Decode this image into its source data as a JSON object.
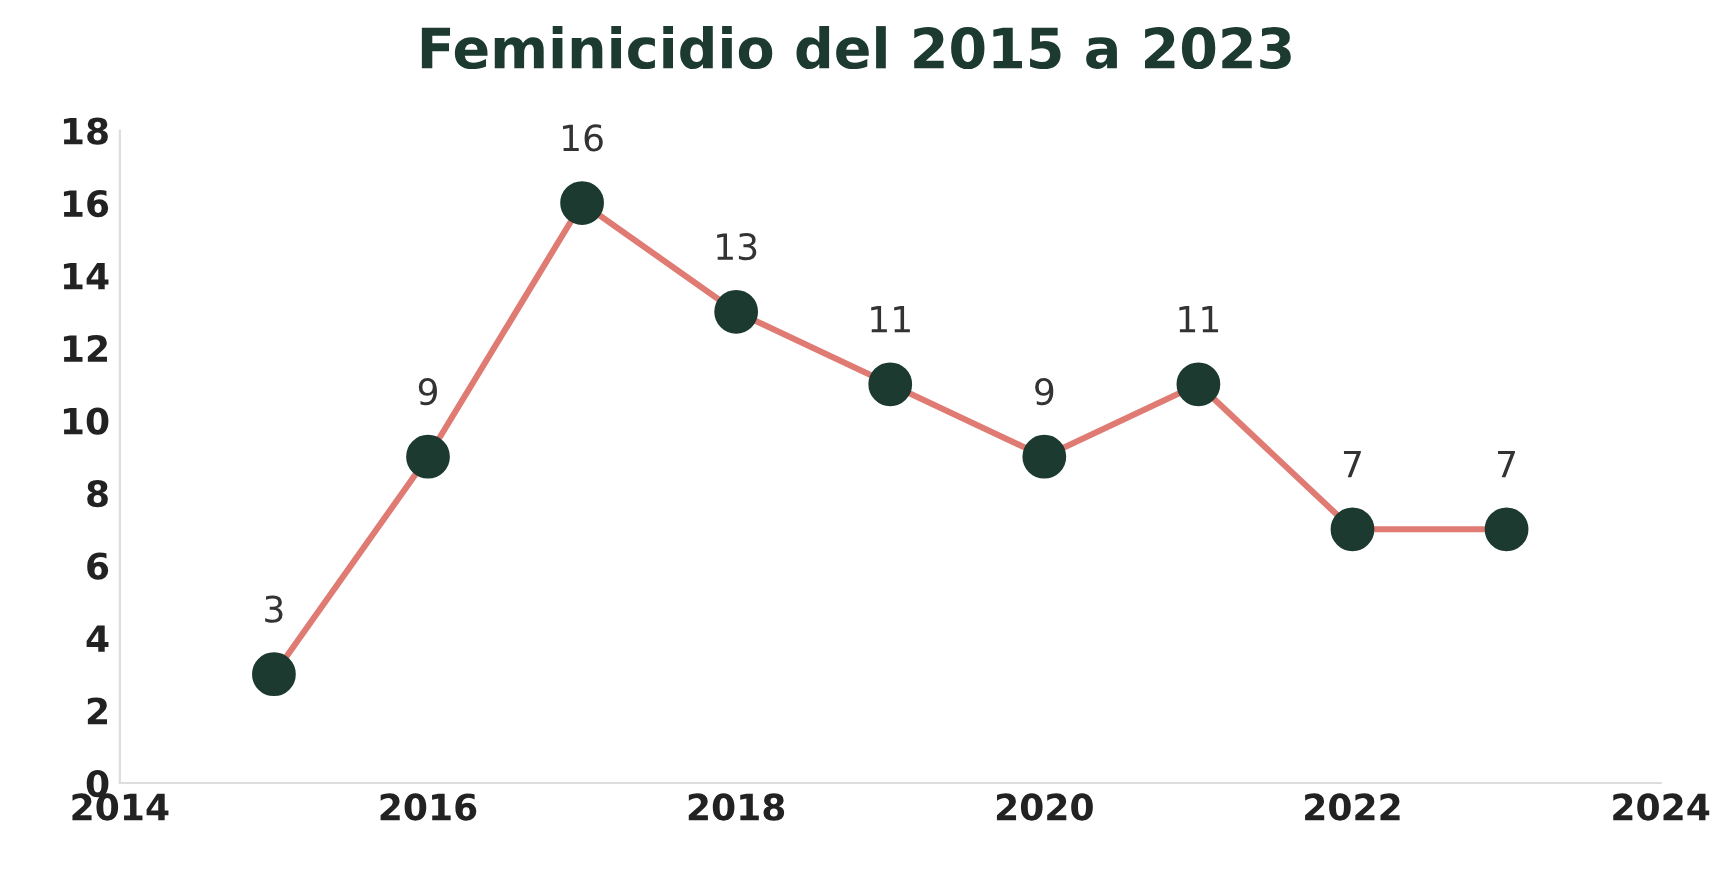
{
  "chart_data": {
    "type": "line",
    "title": "Feminicidio del 2015 a 2023",
    "x": [
      2015,
      2016,
      2017,
      2018,
      2019,
      2020,
      2021,
      2022,
      2023
    ],
    "series": [
      {
        "color": "#e07b74",
        "values": [
          3,
          9,
          16,
          13,
          11,
          9,
          11,
          7,
          7
        ]
      }
    ],
    "xlim": [
      2014,
      2024
    ],
    "xticks": [
      2014,
      2016,
      2018,
      2020,
      2022,
      2024
    ],
    "ylim": [
      0,
      18
    ],
    "yticks": [
      0,
      2,
      4,
      6,
      8,
      10,
      12,
      14,
      16,
      18
    ],
    "marker": "circle",
    "line_style": "solid",
    "grid": false,
    "data_labels": true
  }
}
